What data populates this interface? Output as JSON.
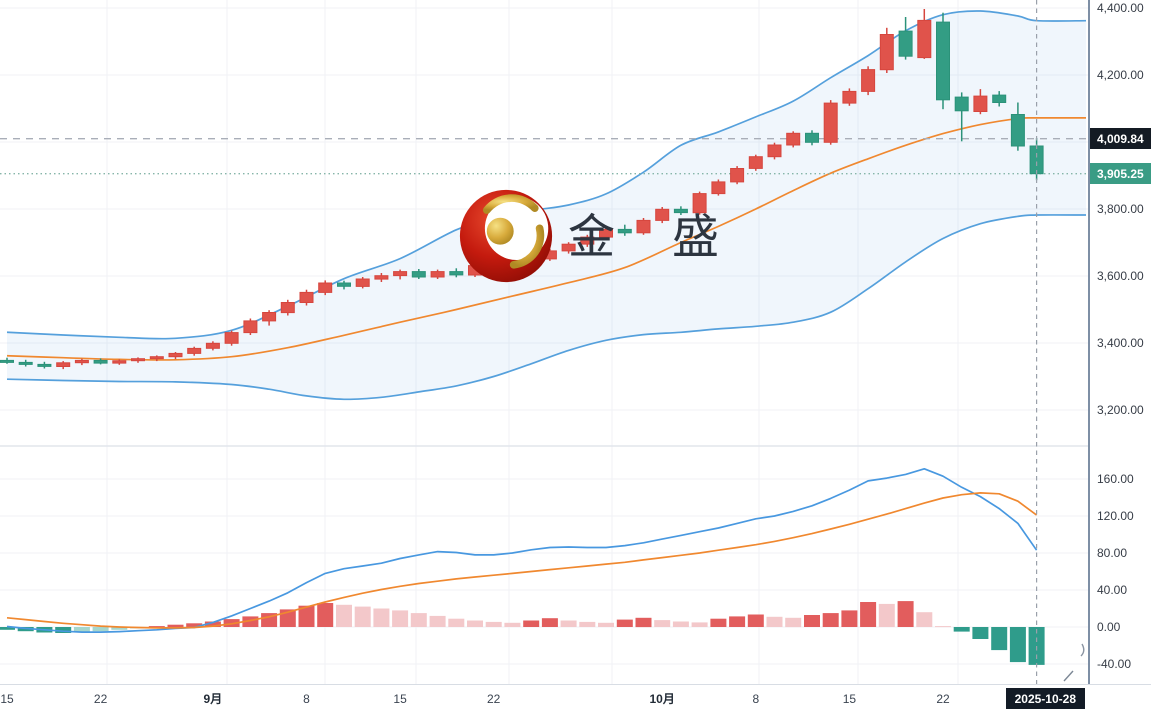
{
  "watermark": {
    "brand_text": "金 盛"
  },
  "price_scale": {
    "labels": [
      {
        "text": "4,400.00",
        "price": 4400
      },
      {
        "text": "4,200.00",
        "price": 4200
      },
      {
        "text": "3,800.00",
        "price": 3800
      },
      {
        "text": "3,600.00",
        "price": 3600
      },
      {
        "text": "3,400.00",
        "price": 3400
      },
      {
        "text": "3,200.00",
        "price": 3200
      }
    ],
    "prev_close_badge": {
      "text": "4,009.84",
      "price": 4009.84
    },
    "last_price_badge": {
      "text": "3,905.25",
      "price": 3905.25
    }
  },
  "indicator_scale": {
    "labels": [
      {
        "text": "160.00",
        "value": 160
      },
      {
        "text": "120.00",
        "value": 120
      },
      {
        "text": "80.00",
        "value": 80
      },
      {
        "text": "40.00",
        "value": 40
      },
      {
        "text": "0.00",
        "value": 0
      },
      {
        "text": "-40.00",
        "value": -40
      }
    ]
  },
  "time_scale": {
    "labels": [
      {
        "text": "15",
        "index": 0,
        "bold": false
      },
      {
        "text": "22",
        "index": 5,
        "bold": false
      },
      {
        "text": "9月",
        "index": 11,
        "bold": true
      },
      {
        "text": "8",
        "index": 16,
        "bold": false
      },
      {
        "text": "15",
        "index": 21,
        "bold": false
      },
      {
        "text": "22",
        "index": 26,
        "bold": false
      },
      {
        "text": "10月",
        "index": 35,
        "bold": true
      },
      {
        "text": "8",
        "index": 40,
        "bold": false
      },
      {
        "text": "15",
        "index": 45,
        "bold": false
      },
      {
        "text": "22",
        "index": 50,
        "bold": false
      }
    ],
    "date_badge": {
      "text": "2025-10-28",
      "index": 55
    }
  },
  "chart_data": {
    "type": "candlestick",
    "title": "金盛 gold daily chart with Bollinger Bands and MACD",
    "price_pane": {
      "ylim": [
        3200,
        4400
      ],
      "grid_step": 200,
      "prev_close_line": 4009.84,
      "last_price_line": 3905.25,
      "candles": [
        [
          3348,
          3356,
          3338,
          3342
        ],
        [
          3342,
          3350,
          3330,
          3336
        ],
        [
          3336,
          3344,
          3324,
          3330
        ],
        [
          3330,
          3346,
          3322,
          3341
        ],
        [
          3341,
          3353,
          3334,
          3348
        ],
        [
          3348,
          3354,
          3336,
          3340
        ],
        [
          3340,
          3351,
          3335,
          3347
        ],
        [
          3347,
          3357,
          3341,
          3353
        ],
        [
          3353,
          3363,
          3346,
          3359
        ],
        [
          3359,
          3373,
          3352,
          3369
        ],
        [
          3369,
          3389,
          3362,
          3384
        ],
        [
          3384,
          3405,
          3378,
          3399
        ],
        [
          3399,
          3437,
          3392,
          3431
        ],
        [
          3431,
          3473,
          3424,
          3466
        ],
        [
          3466,
          3498,
          3452,
          3491
        ],
        [
          3491,
          3529,
          3482,
          3521
        ],
        [
          3521,
          3559,
          3512,
          3551
        ],
        [
          3551,
          3587,
          3543,
          3579
        ],
        [
          3579,
          3586,
          3560,
          3569
        ],
        [
          3569,
          3597,
          3563,
          3591
        ],
        [
          3591,
          3609,
          3582,
          3601
        ],
        [
          3601,
          3619,
          3590,
          3613
        ],
        [
          3613,
          3621,
          3591,
          3597
        ],
        [
          3597,
          3619,
          3591,
          3613
        ],
        [
          3613,
          3623,
          3596,
          3603
        ],
        [
          3603,
          3637,
          3597,
          3631
        ],
        [
          3631,
          3657,
          3622,
          3649
        ],
        [
          3649,
          3667,
          3639,
          3661
        ],
        [
          3661,
          3669,
          3645,
          3651
        ],
        [
          3651,
          3681,
          3645,
          3675
        ],
        [
          3675,
          3701,
          3667,
          3695
        ],
        [
          3695,
          3723,
          3687,
          3716
        ],
        [
          3716,
          3746,
          3708,
          3739
        ],
        [
          3739,
          3753,
          3720,
          3729
        ],
        [
          3729,
          3773,
          3723,
          3766
        ],
        [
          3766,
          3806,
          3758,
          3799
        ],
        [
          3799,
          3808,
          3782,
          3789
        ],
        [
          3789,
          3852,
          3783,
          3846
        ],
        [
          3846,
          3888,
          3840,
          3881
        ],
        [
          3881,
          3928,
          3874,
          3921
        ],
        [
          3921,
          3962,
          3914,
          3956
        ],
        [
          3956,
          3998,
          3948,
          3991
        ],
        [
          3991,
          4032,
          3984,
          4026
        ],
        [
          4026,
          4035,
          3990,
          3999
        ],
        [
          3999,
          4125,
          3992,
          4116
        ],
        [
          4116,
          4160,
          4108,
          4151
        ],
        [
          4151,
          4226,
          4140,
          4216
        ],
        [
          4216,
          4341,
          4206,
          4321
        ],
        [
          4331,
          4373,
          4246,
          4256
        ],
        [
          4252,
          4397,
          4248,
          4363
        ],
        [
          4358,
          4386,
          4098,
          4126
        ],
        [
          4134,
          4148,
          4002,
          4093
        ],
        [
          4091,
          4158,
          4083,
          4137
        ],
        [
          4140,
          4152,
          4106,
          4118
        ],
        [
          4082,
          4118,
          3974,
          3988
        ],
        [
          3988,
          4012,
          3886,
          3905.25
        ]
      ],
      "bollinger": {
        "upper": [
          [
            0,
            3432
          ],
          [
            3,
            3424
          ],
          [
            6,
            3417
          ],
          [
            9,
            3414
          ],
          [
            12,
            3438
          ],
          [
            15,
            3510
          ],
          [
            18,
            3592
          ],
          [
            21,
            3652
          ],
          [
            24,
            3738
          ],
          [
            26,
            3772
          ],
          [
            28,
            3795
          ],
          [
            30,
            3812
          ],
          [
            32,
            3845
          ],
          [
            34,
            3910
          ],
          [
            36,
            3990
          ],
          [
            38,
            4030
          ],
          [
            40,
            4075
          ],
          [
            42,
            4122
          ],
          [
            44,
            4192
          ],
          [
            46,
            4258
          ],
          [
            48,
            4332
          ],
          [
            50,
            4380
          ],
          [
            52,
            4391
          ],
          [
            54,
            4376
          ],
          [
            55,
            4362
          ]
        ],
        "mid": [
          [
            0,
            3362
          ],
          [
            3,
            3356
          ],
          [
            6,
            3351
          ],
          [
            9,
            3350
          ],
          [
            12,
            3359
          ],
          [
            15,
            3386
          ],
          [
            18,
            3423
          ],
          [
            21,
            3462
          ],
          [
            24,
            3500
          ],
          [
            27,
            3540
          ],
          [
            30,
            3580
          ],
          [
            33,
            3625
          ],
          [
            36,
            3700
          ],
          [
            38,
            3748
          ],
          [
            40,
            3800
          ],
          [
            42,
            3855
          ],
          [
            44,
            3907
          ],
          [
            46,
            3950
          ],
          [
            48,
            3990
          ],
          [
            50,
            4025
          ],
          [
            52,
            4052
          ],
          [
            54,
            4070
          ],
          [
            55,
            4072
          ]
        ],
        "lower": [
          [
            0,
            3292
          ],
          [
            3,
            3288
          ],
          [
            6,
            3285
          ],
          [
            9,
            3284
          ],
          [
            12,
            3276
          ],
          [
            14,
            3262
          ],
          [
            16,
            3242
          ],
          [
            18,
            3232
          ],
          [
            20,
            3238
          ],
          [
            22,
            3254
          ],
          [
            24,
            3272
          ],
          [
            26,
            3300
          ],
          [
            28,
            3338
          ],
          [
            30,
            3378
          ],
          [
            32,
            3408
          ],
          [
            34,
            3425
          ],
          [
            36,
            3432
          ],
          [
            38,
            3442
          ],
          [
            40,
            3450
          ],
          [
            42,
            3462
          ],
          [
            44,
            3492
          ],
          [
            46,
            3562
          ],
          [
            48,
            3642
          ],
          [
            50,
            3712
          ],
          [
            52,
            3756
          ],
          [
            54,
            3778
          ],
          [
            55,
            3782
          ]
        ]
      }
    },
    "indicator_pane": {
      "ylim": [
        -40,
        160
      ],
      "grid_step": 40,
      "macd": [
        0.5,
        -1.5,
        -3,
        -4.5,
        -5.5,
        -5.5,
        -5,
        -4,
        -3,
        -1.5,
        -0.5,
        5,
        12,
        20,
        28,
        37,
        48,
        58,
        63,
        66,
        69,
        74,
        78,
        81.5,
        80.5,
        78,
        78,
        80,
        83.5,
        86,
        86.5,
        86,
        86,
        88,
        91,
        95,
        99,
        103,
        107,
        112,
        117,
        120,
        125,
        131,
        139,
        148,
        158,
        161,
        165,
        171,
        163,
        151,
        141,
        128,
        112,
        83
      ],
      "signal": [
        10,
        8,
        6,
        4,
        2.5,
        1,
        0,
        -0.5,
        -1,
        -1,
        -0.5,
        1,
        3.5,
        7,
        11,
        16,
        21.5,
        27,
        32,
        36.5,
        40.5,
        44,
        47,
        49.5,
        52,
        54,
        56,
        58,
        60,
        62,
        64,
        66,
        68,
        70,
        72.5,
        75,
        77.5,
        80,
        83,
        86,
        89,
        92.5,
        96.5,
        101,
        106,
        111,
        116.5,
        122,
        128,
        134,
        139.5,
        143,
        145,
        144,
        136,
        121
      ],
      "histogram": [
        -3,
        -4.5,
        -6,
        -6.5,
        -6,
        -4.5,
        -3,
        -1.5,
        1,
        2.5,
        4,
        6,
        8.5,
        11.5,
        15,
        19,
        23,
        26,
        24,
        22,
        20,
        18,
        15,
        12,
        9,
        7,
        5.5,
        4.5,
        7,
        9.5,
        7,
        5.5,
        4.5,
        8,
        10,
        7.5,
        6,
        5,
        9,
        11.5,
        13.5,
        11,
        10,
        13,
        15,
        18,
        27,
        25,
        28,
        16,
        1,
        -5,
        -13,
        -25,
        -38,
        -41
      ]
    },
    "palette": {
      "up_body": "#e0534b",
      "up_border": "#d6463e",
      "down_body": "#339d84",
      "down_border": "#2b9279",
      "bb_line": "#55a0dc",
      "bb_mid": "#f0882f",
      "bb_fill": "rgba(84,157,220,0.09)",
      "macd_line": "#4898e0",
      "signal_line": "#f0882f",
      "hist_pos_strong": "#e25d5d",
      "hist_pos_light": "#f3c8ca",
      "hist_neg_strong": "#2f9c8b",
      "hist_neg_light": "#a5d6cd",
      "prev_close_badge_bg": "#141b24",
      "last_price_badge_bg": "#3a9c85",
      "date_badge_bg": "#131b26",
      "grid": "#f0f2f6",
      "separator": "#e2e6ec",
      "crosshair": "#9aa0aa",
      "prev_close_line_color": "#a9aeb8",
      "last_price_line_color": "#86b5a9"
    }
  }
}
